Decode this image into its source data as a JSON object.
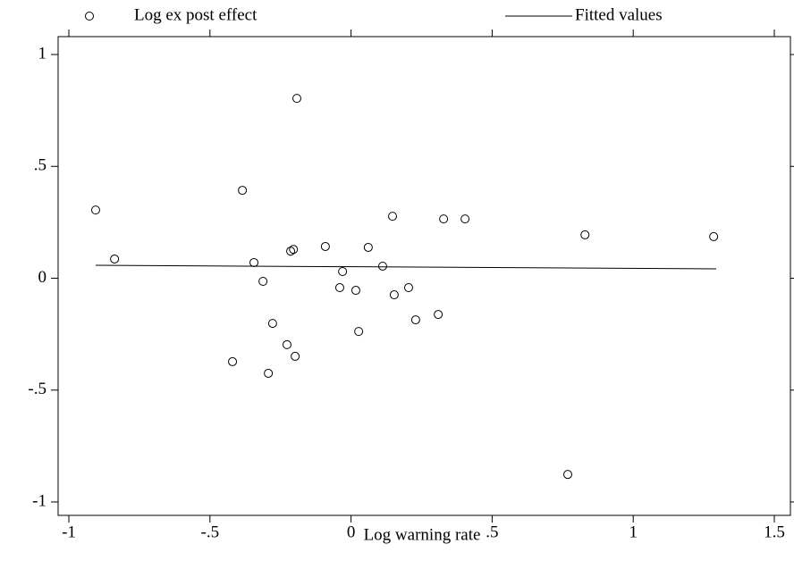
{
  "chart_data": {
    "type": "scatter",
    "x_label": "Log warning rate",
    "xlim": [
      -1.038,
      1.557
    ],
    "ylim": [
      -1.06,
      1.08
    ],
    "xticks": [
      {
        "value": -1,
        "label": "-1"
      },
      {
        "value": -0.5,
        "label": "-.5"
      },
      0,
      {
        "value": 0.5,
        "label": ".5"
      },
      1,
      1.5
    ],
    "yticks": [
      {
        "value": -1,
        "label": "-1"
      },
      {
        "value": -0.5,
        "label": "-.5"
      },
      0,
      {
        "value": 0.5,
        "label": ".5"
      },
      1
    ],
    "grid": false,
    "legend": "top",
    "series": [
      {
        "name": "Log ex post effect",
        "type": "scatter",
        "color": "#000000",
        "x": [
          -0.905,
          -0.838,
          -0.192,
          -0.385,
          -0.091,
          0.147,
          0.328,
          0.404,
          0.829,
          1.285,
          -0.204,
          -0.214,
          0.061,
          -0.344,
          -0.03,
          0.112,
          -0.312,
          -0.04,
          0.017,
          0.204,
          0.153,
          0.229,
          0.309,
          -0.278,
          0.027,
          -0.227,
          -0.198,
          -0.42,
          -0.293,
          0.768
        ],
        "values": [
          0.305,
          0.086,
          0.804,
          0.393,
          0.142,
          0.277,
          0.265,
          0.265,
          0.194,
          0.186,
          0.129,
          0.121,
          0.138,
          0.07,
          0.03,
          0.054,
          -0.014,
          -0.042,
          -0.054,
          -0.042,
          -0.074,
          -0.186,
          -0.162,
          -0.202,
          -0.238,
          -0.297,
          -0.349,
          -0.373,
          -0.425,
          -0.877
        ]
      },
      {
        "name": "Fitted values",
        "type": "line",
        "color": "#000000",
        "x": [
          -0.905,
          1.294
        ],
        "values": [
          0.058,
          0.042
        ]
      }
    ]
  }
}
